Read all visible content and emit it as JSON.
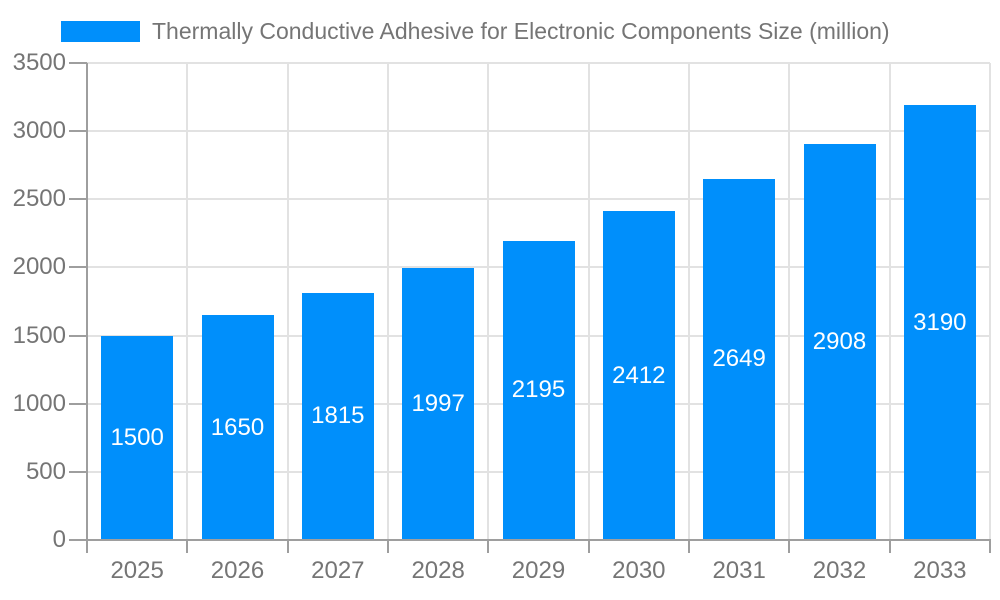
{
  "legend": {
    "label": "Thermally Conductive Adhesive for Electronic Components Size (million)"
  },
  "colors": {
    "bar": "#008FFB",
    "grid": "#e2e2e2",
    "axis": "#9e9e9e",
    "tick_label": "#757575",
    "value_label": "#ffffff",
    "background": "#ffffff"
  },
  "chart_data": {
    "type": "bar",
    "title": "Thermally Conductive Adhesive for Electronic Components Size (million)",
    "categories": [
      "2025",
      "2026",
      "2027",
      "2028",
      "2029",
      "2030",
      "2031",
      "2032",
      "2033"
    ],
    "values": [
      1500,
      1650,
      1815,
      1997,
      2195,
      2412,
      2649,
      2908,
      3190
    ],
    "xlabel": "",
    "ylabel": "",
    "ylim": [
      0,
      3500
    ],
    "ytick_step": 500,
    "ytick_labels": [
      "0",
      "500",
      "1000",
      "1500",
      "2000",
      "2500",
      "3000",
      "3500"
    ],
    "grid": true,
    "legend_position": "top",
    "value_label_position": "inside-center"
  }
}
